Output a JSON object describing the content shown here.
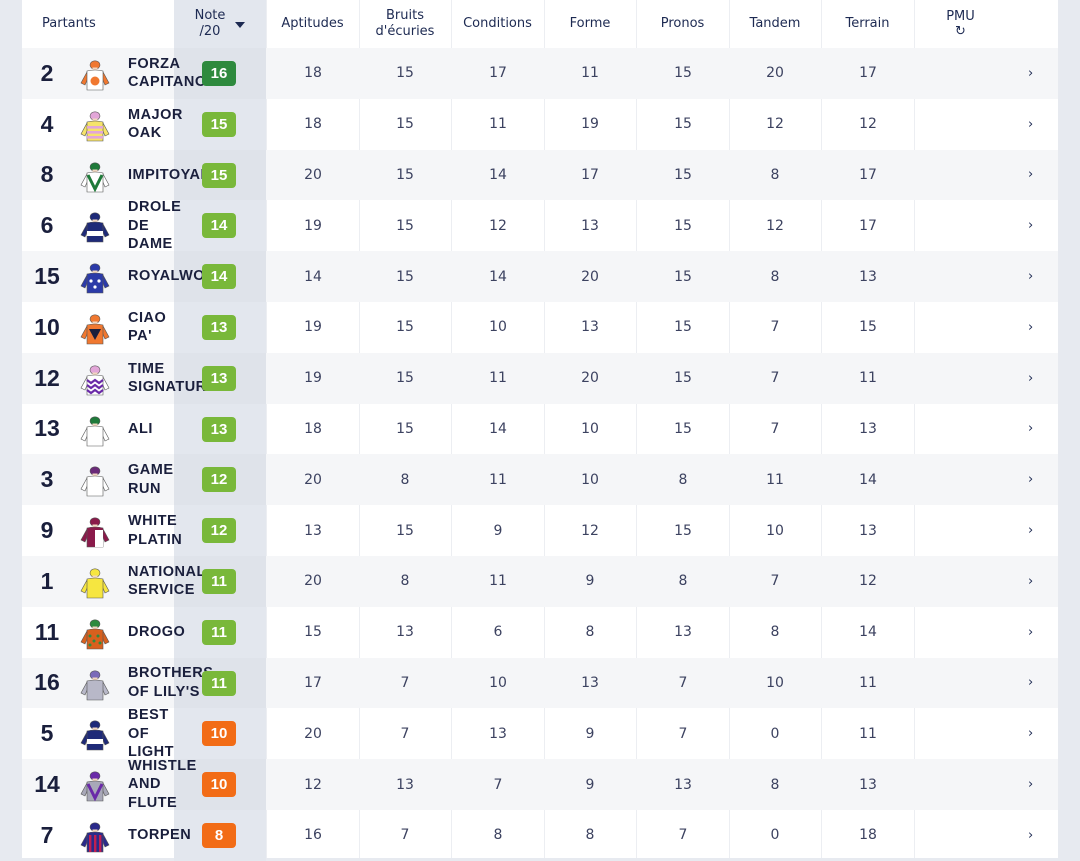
{
  "header": {
    "partants": "Partants",
    "note_line1": "Note",
    "note_line2": "/20",
    "aptitudes": "Aptitudes",
    "bruits_line1": "Bruits",
    "bruits_line2": "d'écuries",
    "conditions": "Conditions",
    "forme": "Forme",
    "pronos": "Pronos",
    "tandem": "Tandem",
    "terrain": "Terrain",
    "pmu": "PMU",
    "pmu_icon": "refresh-icon"
  },
  "colors": {
    "badge_dark_green": "#2e8a3e",
    "badge_green": "#79b83a",
    "badge_orange": "#f26c16"
  },
  "runners": [
    {
      "num": "2",
      "name": "FORZA\nCAPITANO",
      "note": "16",
      "level": "dark-green",
      "aptitudes": "18",
      "bruits": "15",
      "conditions": "17",
      "forme": "11",
      "pronos": "15",
      "tandem": "20",
      "terrain": "17",
      "silk": {
        "body": "#ffffff",
        "accent": "#f07830",
        "sleeve": "#f07830",
        "cap": "#f07830",
        "pattern": "disc"
      }
    },
    {
      "num": "4",
      "name": "MAJOR\nOAK",
      "note": "15",
      "level": "green",
      "aptitudes": "18",
      "bruits": "15",
      "conditions": "11",
      "forme": "19",
      "pronos": "15",
      "tandem": "12",
      "terrain": "12",
      "silk": {
        "body": "#f6e36a",
        "accent": "#e2a6d8",
        "sleeve": "#f6e36a",
        "cap": "#e2a6d8",
        "pattern": "hoops"
      }
    },
    {
      "num": "8",
      "name": "IMPITOYABLE",
      "note": "15",
      "level": "green",
      "aptitudes": "20",
      "bruits": "15",
      "conditions": "14",
      "forme": "17",
      "pronos": "15",
      "tandem": "8",
      "terrain": "17",
      "silk": {
        "body": "#ffffff",
        "accent": "#1f7a3a",
        "sleeve": "#ffffff",
        "cap": "#1f7a3a",
        "pattern": "chevron"
      }
    },
    {
      "num": "6",
      "name": "DROLE\nDE\nDAME",
      "note": "14",
      "level": "green",
      "aptitudes": "19",
      "bruits": "15",
      "conditions": "12",
      "forme": "13",
      "pronos": "15",
      "tandem": "12",
      "terrain": "17",
      "silk": {
        "body": "#1e2a78",
        "accent": "#ffffff",
        "sleeve": "#1e2a78",
        "cap": "#1e2a78",
        "pattern": "band"
      }
    },
    {
      "num": "15",
      "name": "ROYALWOOD",
      "note": "14",
      "level": "green",
      "aptitudes": "14",
      "bruits": "15",
      "conditions": "14",
      "forme": "20",
      "pronos": "15",
      "tandem": "8",
      "terrain": "13",
      "silk": {
        "body": "#2b3aa8",
        "accent": "#ffffff",
        "sleeve": "#2b3aa8",
        "cap": "#2b3aa8",
        "pattern": "stars"
      }
    },
    {
      "num": "10",
      "name": "CIAO\nPA'",
      "note": "13",
      "level": "green",
      "aptitudes": "19",
      "bruits": "15",
      "conditions": "10",
      "forme": "13",
      "pronos": "15",
      "tandem": "7",
      "terrain": "15",
      "silk": {
        "body": "#f07830",
        "accent": "#1a1f3c",
        "sleeve": "#f07830",
        "cap": "#f07830",
        "pattern": "triangle"
      }
    },
    {
      "num": "12",
      "name": "TIME\nSIGNATURE",
      "note": "13",
      "level": "green",
      "aptitudes": "19",
      "bruits": "15",
      "conditions": "11",
      "forme": "20",
      "pronos": "15",
      "tandem": "7",
      "terrain": "11",
      "silk": {
        "body": "#ffffff",
        "accent": "#6a2aa8",
        "sleeve": "#ffffff",
        "cap": "#e2a6d8",
        "pattern": "zigzag"
      }
    },
    {
      "num": "13",
      "name": "ALI",
      "note": "13",
      "level": "green",
      "aptitudes": "18",
      "bruits": "15",
      "conditions": "14",
      "forme": "10",
      "pronos": "15",
      "tandem": "7",
      "terrain": "13",
      "silk": {
        "body": "#ffffff",
        "accent": "#1f7a3a",
        "sleeve": "#ffffff",
        "cap": "#1f7a3a",
        "pattern": "plain"
      }
    },
    {
      "num": "3",
      "name": "GAME\nRUN",
      "note": "12",
      "level": "green",
      "aptitudes": "20",
      "bruits": "8",
      "conditions": "11",
      "forme": "10",
      "pronos": "8",
      "tandem": "11",
      "terrain": "14",
      "silk": {
        "body": "#ffffff",
        "accent": "#6a2a78",
        "sleeve": "#ffffff",
        "cap": "#6a2a78",
        "pattern": "plain"
      }
    },
    {
      "num": "9",
      "name": "WHITE\nPLATIN",
      "note": "12",
      "level": "green",
      "aptitudes": "13",
      "bruits": "15",
      "conditions": "9",
      "forme": "12",
      "pronos": "15",
      "tandem": "10",
      "terrain": "13",
      "silk": {
        "body": "#8a1a4a",
        "accent": "#ffffff",
        "sleeve": "#8a1a4a",
        "cap": "#8a1a4a",
        "pattern": "halves"
      }
    },
    {
      "num": "1",
      "name": "NATIONAL\nSERVICE",
      "note": "11",
      "level": "green",
      "aptitudes": "20",
      "bruits": "8",
      "conditions": "11",
      "forme": "9",
      "pronos": "8",
      "tandem": "7",
      "terrain": "12",
      "silk": {
        "body": "#f6e640",
        "accent": "#f6e640",
        "sleeve": "#f6e640",
        "cap": "#f6e640",
        "pattern": "plain"
      }
    },
    {
      "num": "11",
      "name": "DROGO",
      "note": "11",
      "level": "green",
      "aptitudes": "15",
      "bruits": "13",
      "conditions": "6",
      "forme": "8",
      "pronos": "13",
      "tandem": "8",
      "terrain": "14",
      "silk": {
        "body": "#d8601e",
        "accent": "#2e8a3e",
        "sleeve": "#d8601e",
        "cap": "#2e8a3e",
        "pattern": "spots"
      }
    },
    {
      "num": "16",
      "name": "BROTHERS\nOF LILY'S",
      "note": "11",
      "level": "green",
      "aptitudes": "17",
      "bruits": "7",
      "conditions": "10",
      "forme": "13",
      "pronos": "7",
      "tandem": "10",
      "terrain": "11",
      "silk": {
        "body": "#b8b8c8",
        "accent": "#7a6ab8",
        "sleeve": "#b8b8c8",
        "cap": "#7a6ab8",
        "pattern": "plain"
      }
    },
    {
      "num": "5",
      "name": "BEST\nOF\nLIGHT",
      "note": "10",
      "level": "orange",
      "aptitudes": "20",
      "bruits": "7",
      "conditions": "13",
      "forme": "9",
      "pronos": "7",
      "tandem": "0",
      "terrain": "11",
      "silk": {
        "body": "#1e2a78",
        "accent": "#ffffff",
        "sleeve": "#1e2a78",
        "cap": "#1e2a78",
        "pattern": "band"
      }
    },
    {
      "num": "14",
      "name": "WHISTLE\nAND\nFLUTE",
      "note": "10",
      "level": "orange",
      "aptitudes": "12",
      "bruits": "13",
      "conditions": "7",
      "forme": "9",
      "pronos": "13",
      "tandem": "8",
      "terrain": "13",
      "silk": {
        "body": "#a8a8b8",
        "accent": "#6a2aa8",
        "sleeve": "#a8a8b8",
        "cap": "#6a2aa8",
        "pattern": "chevron"
      }
    },
    {
      "num": "7",
      "name": "TORPEN",
      "note": "8",
      "level": "orange",
      "aptitudes": "16",
      "bruits": "7",
      "conditions": "8",
      "forme": "8",
      "pronos": "7",
      "tandem": "0",
      "terrain": "18",
      "silk": {
        "body": "#2a2a8a",
        "accent": "#c02050",
        "sleeve": "#2a2a8a",
        "cap": "#2a2a8a",
        "pattern": "stripes"
      }
    }
  ]
}
